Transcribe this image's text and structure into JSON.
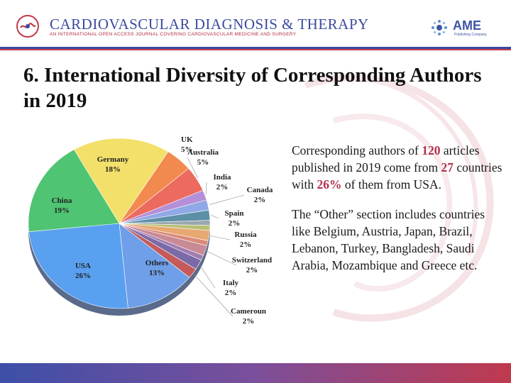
{
  "header": {
    "journal_title": "CARDIOVASCULAR DIAGNOSIS & THERAPY",
    "journal_subtitle": "AN INTERNATIONAL OPEN ACCESS JOURNAL COVERING CARDIOVASCULAR MEDICINE AND SURGERY",
    "publisher_name": "AME",
    "publisher_sub": "Publishing Company"
  },
  "slide": {
    "title": "6. International Diversity of Corresponding Authors in 2019"
  },
  "description": {
    "p1_a": "Corresponding authors of ",
    "p1_n1": "120",
    "p1_b": " articles published in 2019 come from ",
    "p1_n2": "27",
    "p1_c": " countries with ",
    "p1_n3": "26%",
    "p1_d": " of them from USA.",
    "p2": "The “Other” section includes countries like Belgium, Austria, Japan, Brazil, Lebanon, Turkey, Bangladesh, Saudi Arabia, Mozambique and Greece etc."
  },
  "colors": {
    "header_blue": "#3b4aa0",
    "header_red": "#c23a4a",
    "highlight": "#b0324a"
  },
  "chart_data": {
    "type": "pie",
    "title": "",
    "slices": [
      {
        "name": "UK",
        "value": 5,
        "label": "5%",
        "color": "#f2894f"
      },
      {
        "name": "Australia",
        "value": 5,
        "label": "5%",
        "color": "#ec6a5e"
      },
      {
        "name": "India",
        "value": 2,
        "label": "2%",
        "color": "#b58fd8"
      },
      {
        "name": "Canada",
        "value": 2,
        "label": "2%",
        "color": "#8fa8e6"
      },
      {
        "name": "Spain",
        "value": 2,
        "label": "2%",
        "color": "#5d8fa6"
      },
      {
        "name": "",
        "value": 1,
        "label": "",
        "color": "#9aa7ae"
      },
      {
        "name": "",
        "value": 1,
        "label": "",
        "color": "#b9bf74"
      },
      {
        "name": "Russia",
        "value": 2,
        "label": "2%",
        "color": "#e8a872"
      },
      {
        "name": "",
        "value": 1,
        "label": "",
        "color": "#d98a7a"
      },
      {
        "name": "Switzerland",
        "value": 2,
        "label": "2%",
        "color": "#c98a96"
      },
      {
        "name": "",
        "value": 1,
        "label": "",
        "color": "#a07cb0"
      },
      {
        "name": "Italy",
        "value": 2,
        "label": "2%",
        "color": "#7b6aa8"
      },
      {
        "name": "Cameroun",
        "value": 2,
        "label": "2%",
        "color": "#c45a5a"
      },
      {
        "name": "Others",
        "value": 13,
        "label": "13%",
        "color": "#6e9fe8"
      },
      {
        "name": "USA",
        "value": 26,
        "label": "26%",
        "color": "#5aa0f0"
      },
      {
        "name": "China",
        "value": 19,
        "label": "19%",
        "color": "#4fc472"
      },
      {
        "name": "Germany",
        "value": 18,
        "label": "18%",
        "color": "#f3e06a"
      }
    ]
  }
}
